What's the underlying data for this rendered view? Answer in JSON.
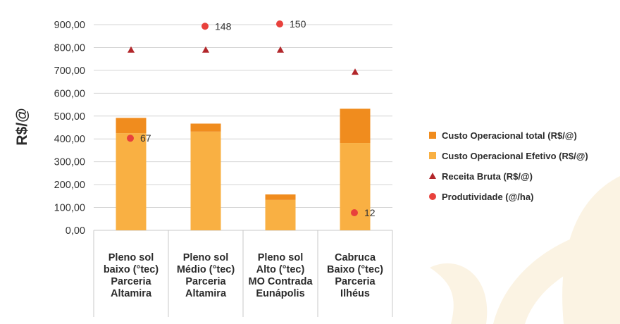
{
  "chart_data": {
    "type": "bar",
    "title": "",
    "ylabel": "R$/@",
    "xlabel": "",
    "ylim": [
      0,
      900
    ],
    "yticks": [
      "0,00",
      "100,00",
      "200,00",
      "300,00",
      "400,00",
      "500,00",
      "600,00",
      "700,00",
      "800,00",
      "900,00"
    ],
    "grid": true,
    "stacked": true,
    "legend_position": "right",
    "categories": [
      [
        "Pleno sol",
        "baixo (°tec)",
        "Parceria",
        "Altamira"
      ],
      [
        "Pleno sol",
        "Médio (°tec)",
        "Parceria",
        "Altamira"
      ],
      [
        "Pleno sol",
        "Alto (°tec)",
        "MO Contrada",
        "Eunápolis"
      ],
      [
        "Cabruca",
        "Baixo (°tec)",
        "Parceria",
        "Ilhéus"
      ]
    ],
    "series": [
      {
        "name": "Custo Operacional total (R$/@)",
        "kind": "bar",
        "color": "#f08c1e",
        "values": [
          492,
          467,
          157,
          532
        ]
      },
      {
        "name": "Custo Operacional Efetivo (R$/@)",
        "kind": "bar",
        "color": "#f9b043",
        "values": [
          425,
          432,
          133,
          382
        ]
      },
      {
        "name": "Receita Bruta (R$/@)",
        "kind": "triangle",
        "color": "#b2262a",
        "values": [
          790,
          790,
          790,
          693
        ]
      },
      {
        "name": "Produtividade (@/ha)",
        "kind": "circle",
        "color": "#e8413c",
        "values": [
          67,
          148,
          150,
          12
        ],
        "positions": [
          403,
          893,
          903,
          77
        ],
        "labels": [
          "67",
          "148",
          "150",
          "12"
        ]
      }
    ]
  }
}
